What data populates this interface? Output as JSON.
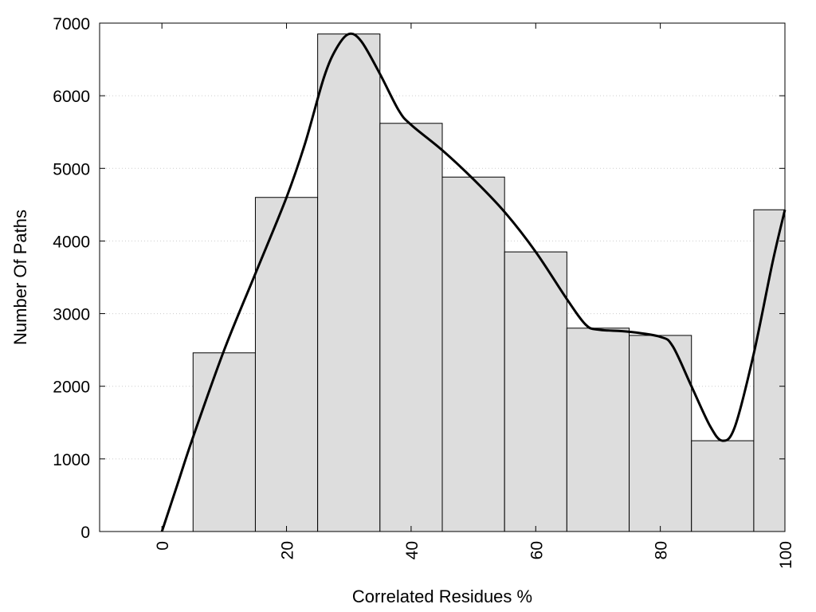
{
  "chart_data": {
    "type": "bar",
    "title": "",
    "xlabel": "Correlated Residues %",
    "ylabel": "Number Of Paths",
    "xlim": [
      -10,
      100
    ],
    "ylim": [
      0,
      7000
    ],
    "x_ticks": [
      "0",
      "20",
      "40",
      "60",
      "80",
      "100"
    ],
    "x_tick_values": [
      0,
      20,
      40,
      60,
      80,
      100
    ],
    "y_ticks": [
      "0",
      "1000",
      "2000",
      "3000",
      "4000",
      "5000",
      "6000",
      "7000"
    ],
    "y_tick_values": [
      0,
      1000,
      2000,
      3000,
      4000,
      5000,
      6000,
      7000
    ],
    "grid": "horizontal dotted",
    "bins": [
      {
        "from": 5,
        "to": 15,
        "value": 2460
      },
      {
        "from": 15,
        "to": 25,
        "value": 4600
      },
      {
        "from": 25,
        "to": 35,
        "value": 6850
      },
      {
        "from": 35,
        "to": 45,
        "value": 5620
      },
      {
        "from": 45,
        "to": 55,
        "value": 4880
      },
      {
        "from": 55,
        "to": 65,
        "value": 3850
      },
      {
        "from": 65,
        "to": 75,
        "value": 2800
      },
      {
        "from": 75,
        "to": 85,
        "value": 2700
      },
      {
        "from": 85,
        "to": 95,
        "value": 1250
      },
      {
        "from": 95,
        "to": 100,
        "value": 4430
      }
    ],
    "curve": [
      [
        0,
        0
      ],
      [
        2.5,
        650
      ],
      [
        5,
        1300
      ],
      [
        10,
        2500
      ],
      [
        15,
        3550
      ],
      [
        20,
        4600
      ],
      [
        23,
        5350
      ],
      [
        26,
        6250
      ],
      [
        28,
        6650
      ],
      [
        30,
        6850
      ],
      [
        32,
        6750
      ],
      [
        35,
        6300
      ],
      [
        38,
        5800
      ],
      [
        40,
        5600
      ],
      [
        45,
        5250
      ],
      [
        50,
        4850
      ],
      [
        55,
        4400
      ],
      [
        60,
        3850
      ],
      [
        65,
        3200
      ],
      [
        68,
        2850
      ],
      [
        70,
        2780
      ],
      [
        75,
        2750
      ],
      [
        80,
        2680
      ],
      [
        82,
        2550
      ],
      [
        85,
        2000
      ],
      [
        88,
        1450
      ],
      [
        90,
        1250
      ],
      [
        92,
        1450
      ],
      [
        95,
        2450
      ],
      [
        98,
        3700
      ],
      [
        100,
        4430
      ]
    ],
    "colors": {
      "bar_fill": "#dddddd",
      "bar_stroke": "#000000",
      "curve": "#000000",
      "grid": "#cccccc"
    }
  }
}
